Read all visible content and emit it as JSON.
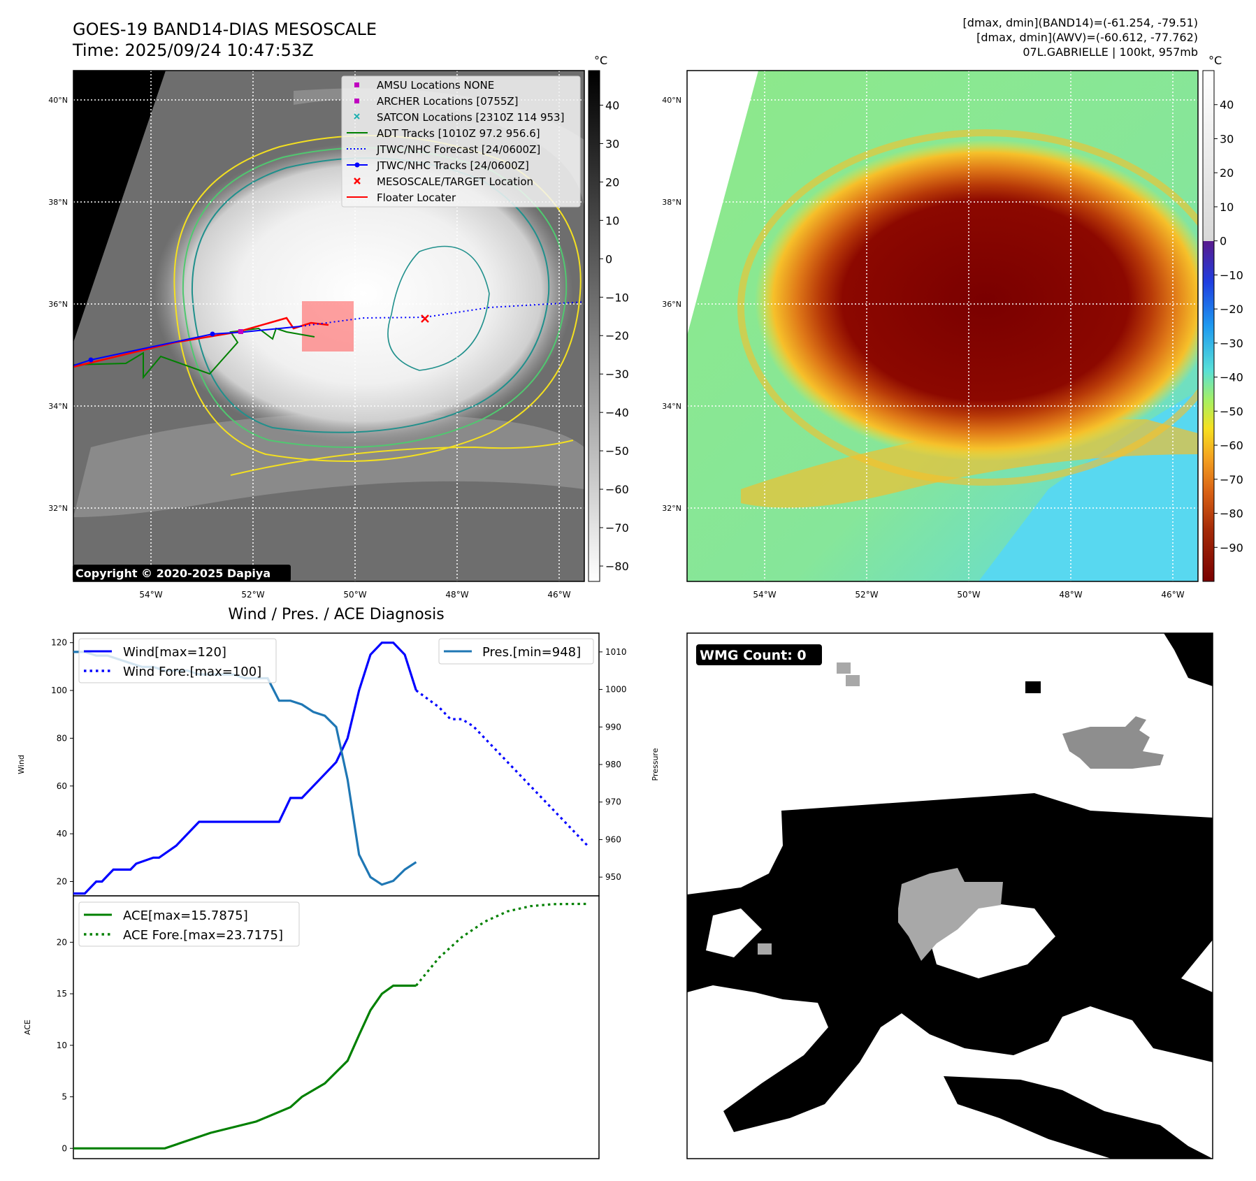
{
  "header": {
    "title": "GOES-19 BAND14-DIAS MESOSCALE",
    "time": "Time: 2025/09/24 10:47:53Z",
    "info_line1": "[dmax, dmin](BAND14)=(-61.254, -79.51)",
    "info_line2": "[dmax, dmin](AWV)=(-60.612, -77.762)",
    "info_line3": "07L.GABRIELLE | 100kt, 957mb"
  },
  "map_axes": {
    "lat_labels": [
      "40°N",
      "38°N",
      "36°N",
      "34°N",
      "32°N"
    ],
    "lon_labels": [
      "54°W",
      "52°W",
      "50°W",
      "48°W",
      "46°W"
    ]
  },
  "gray_colorbar": {
    "unit": "°C",
    "ticks": [
      "40",
      "30",
      "20",
      "10",
      "0",
      "−10",
      "−20",
      "−30",
      "−40",
      "−50",
      "−60",
      "−70",
      "−80"
    ]
  },
  "color_colorbar": {
    "unit": "°C",
    "ticks": [
      "40",
      "30",
      "20",
      "10",
      "0",
      "−10",
      "−20",
      "−30",
      "−40",
      "−50",
      "−60",
      "−70",
      "−80",
      "−90"
    ]
  },
  "legend": {
    "items": [
      {
        "label": "AMSU Locations NONE",
        "marker": "square",
        "color": "#c000c0"
      },
      {
        "label": "ARCHER Locations [0755Z]",
        "marker": "square",
        "color": "#c000c0"
      },
      {
        "label": "SATCON Locations [2310Z 114 953]",
        "marker": "x",
        "color": "#20b0b0"
      },
      {
        "label": "ADT Tracks [1010Z 97.2 956.6]",
        "marker": "line",
        "color": "#008000"
      },
      {
        "label": "JTWC/NHC Forecast [24/0600Z]",
        "marker": "dotted",
        "color": "#0000ff"
      },
      {
        "label": "JTWC/NHC Tracks [24/0600Z]",
        "marker": "line-dot",
        "color": "#0000ff"
      },
      {
        "label": "MESOSCALE/TARGET Location",
        "marker": "x",
        "color": "#ff0000"
      },
      {
        "label": "Floater Locater",
        "marker": "line",
        "color": "#ff0000"
      }
    ]
  },
  "copyright": "Copyright © 2020-2025 Dapiya",
  "diagnosis_title": "Wind / Pres. / ACE Diagnosis",
  "wmg_label": "WMG Count: 0",
  "chart_data": [
    {
      "type": "line",
      "title": "Wind / Pres. / ACE Diagnosis",
      "ylabel": "Wind",
      "y2label": "Pressure",
      "xlim": [
        0,
        46
      ],
      "ylim": [
        14,
        124
      ],
      "y2lim": [
        945,
        1015
      ],
      "yticks": [
        "20",
        "40",
        "60",
        "80",
        "100",
        "120"
      ],
      "y2ticks": [
        "950",
        "960",
        "970",
        "980",
        "990",
        "1000",
        "1010"
      ],
      "series": [
        {
          "name": "Wind[max=120]",
          "axis": "left",
          "style": "solid",
          "color": "#0000ff",
          "x": [
            0,
            1,
            1.5,
            2,
            2.5,
            3,
            3.5,
            5,
            5.5,
            7,
            7.5,
            9,
            11,
            12,
            14,
            16,
            18,
            19,
            20,
            21,
            22,
            23,
            24,
            25,
            26,
            27,
            28,
            29,
            30
          ],
          "values": [
            15,
            15,
            17.5,
            20,
            20,
            22.5,
            25,
            25,
            27.5,
            30,
            30,
            35,
            45,
            45,
            45,
            45,
            45,
            55,
            55,
            60,
            65,
            70,
            80,
            100,
            115,
            120,
            120,
            115,
            100
          ]
        },
        {
          "name": "Wind Fore.[max=100]",
          "axis": "left",
          "style": "dotted",
          "color": "#0000ff",
          "x": [
            30,
            32,
            33,
            34,
            35,
            36,
            37,
            38,
            39,
            40,
            41,
            42,
            43,
            44,
            45
          ],
          "values": [
            100,
            93,
            88,
            88,
            85,
            80,
            75,
            70,
            65,
            60,
            55,
            50,
            45,
            40,
            35
          ]
        },
        {
          "name": "Pres.[min=948]",
          "axis": "right",
          "style": "solid",
          "color": "#1f77b4",
          "x": [
            0,
            1,
            2,
            3,
            4,
            5,
            6,
            7,
            8,
            9,
            10,
            11,
            12,
            13,
            14,
            15,
            16,
            17,
            18,
            19,
            20,
            21,
            22,
            23,
            24,
            25,
            26,
            27,
            28,
            29,
            30
          ],
          "values": [
            1010,
            1010,
            1009,
            1009,
            1008,
            1007,
            1006,
            1006,
            1005,
            1005,
            1005,
            1004,
            1004,
            1004,
            1004,
            1003,
            1003,
            1003,
            997,
            997,
            996,
            994,
            993,
            990,
            976,
            956,
            950,
            948,
            949,
            952,
            954
          ]
        }
      ]
    },
    {
      "type": "line",
      "ylabel": "ACE",
      "xlim": [
        0,
        46
      ],
      "ylim": [
        -1,
        24.5
      ],
      "yticks": [
        "0",
        "5",
        "10",
        "15",
        "20"
      ],
      "series": [
        {
          "name": "ACE[max=15.7875]",
          "style": "solid",
          "color": "#008000",
          "x": [
            0,
            4,
            8,
            12,
            16,
            19,
            20,
            22,
            24,
            25,
            26,
            27,
            28,
            29,
            30
          ],
          "values": [
            0,
            0,
            0,
            1.5,
            2.6,
            4.0,
            5.0,
            6.3,
            8.5,
            11,
            13.4,
            15.0,
            15.7875,
            15.7875,
            15.7875
          ]
        },
        {
          "name": "ACE Fore.[max=23.7175]",
          "style": "dotted",
          "color": "#008000",
          "x": [
            30,
            32,
            34,
            36,
            38,
            40,
            42,
            44,
            45
          ],
          "values": [
            15.8,
            18.5,
            20.5,
            22,
            23,
            23.5,
            23.7,
            23.7175,
            23.7175
          ]
        }
      ]
    }
  ]
}
